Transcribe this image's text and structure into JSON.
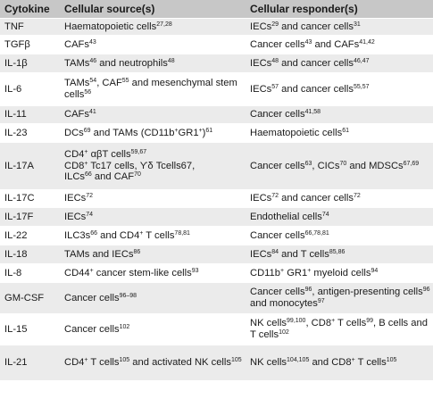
{
  "header": {
    "col1": "Cytokine",
    "col2": "Cellular source(s)",
    "col3": "Cellular responder(s)"
  },
  "rows": [
    {
      "cytokine": "TNF",
      "source": [
        {
          "t": "Haematopoietic cells"
        },
        {
          "s": "27,28"
        }
      ],
      "responder": [
        {
          "t": "IECs"
        },
        {
          "s": "29"
        },
        {
          "t": " and cancer cells"
        },
        {
          "s": "31"
        }
      ]
    },
    {
      "cytokine": "TGFβ",
      "source": [
        {
          "t": "CAFs"
        },
        {
          "s": "43"
        }
      ],
      "responder": [
        {
          "t": "Cancer cells"
        },
        {
          "s": "43"
        },
        {
          "t": " and CAFs"
        },
        {
          "s": "41,42"
        }
      ]
    },
    {
      "cytokine": "IL-1β",
      "source": [
        {
          "t": "TAMs"
        },
        {
          "s": "46"
        },
        {
          "t": " and neutrophils"
        },
        {
          "s": "48"
        }
      ],
      "responder": [
        {
          "t": "IECs"
        },
        {
          "s": "48"
        },
        {
          "t": " and cancer cells"
        },
        {
          "s": "46,47"
        }
      ]
    },
    {
      "cytokine": "IL-6",
      "source": [
        {
          "t": "TAMs"
        },
        {
          "s": "54"
        },
        {
          "t": ", CAF"
        },
        {
          "s": "55"
        },
        {
          "t": " and mesenchymal stem cells"
        },
        {
          "s": "56"
        }
      ],
      "responder": [
        {
          "t": "IECs"
        },
        {
          "s": "57"
        },
        {
          "t": " and cancer cells"
        },
        {
          "s": "55,57"
        }
      ]
    },
    {
      "cytokine": "IL-11",
      "source": [
        {
          "t": "CAFs"
        },
        {
          "s": "41"
        }
      ],
      "responder": [
        {
          "t": "Cancer cells"
        },
        {
          "s": "41,58"
        }
      ]
    },
    {
      "cytokine": "IL-23",
      "source": [
        {
          "t": "DCs"
        },
        {
          "s": "69"
        },
        {
          "t": " and TAMs (CD11b"
        },
        {
          "s": "+"
        },
        {
          "t": "GR1"
        },
        {
          "s": "+"
        },
        {
          "t": ")"
        },
        {
          "s": "61"
        }
      ],
      "responder": [
        {
          "t": "Haematopoietic cells"
        },
        {
          "s": "61"
        }
      ]
    },
    {
      "cytokine": "IL-17A",
      "source": [
        {
          "t": "CD4"
        },
        {
          "s": "+"
        },
        {
          "t": " αβT cells"
        },
        {
          "s": "59,67"
        },
        {
          "br": 1
        },
        {
          "t": "CD8"
        },
        {
          "s": "+"
        },
        {
          "t": " Tc17 cells, ϒδ Tcells67,"
        },
        {
          "br": 1
        },
        {
          "t": "ILCs"
        },
        {
          "s": "66"
        },
        {
          "t": " and CAF"
        },
        {
          "s": "70"
        }
      ],
      "responder": [
        {
          "t": "Cancer cells"
        },
        {
          "s": "63"
        },
        {
          "t": ", CICs"
        },
        {
          "s": "70"
        },
        {
          "t": " and MDSCs"
        },
        {
          "s": "67,69"
        }
      ]
    },
    {
      "cytokine": "IL-17C",
      "source": [
        {
          "t": "IECs"
        },
        {
          "s": "72"
        }
      ],
      "responder": [
        {
          "t": "IECs"
        },
        {
          "s": "72"
        },
        {
          "t": " and cancer cells"
        },
        {
          "s": "72"
        }
      ]
    },
    {
      "cytokine": "IL-17F",
      "source": [
        {
          "t": "IECs"
        },
        {
          "s": "74"
        }
      ],
      "responder": [
        {
          "t": "Endothelial cells"
        },
        {
          "s": "74"
        }
      ]
    },
    {
      "cytokine": "IL-22",
      "source": [
        {
          "t": "ILC3s"
        },
        {
          "s": "66"
        },
        {
          "t": " and CD4"
        },
        {
          "s": "+"
        },
        {
          "t": " T cells"
        },
        {
          "s": "78,81"
        }
      ],
      "responder": [
        {
          "t": "Cancer cells"
        },
        {
          "s": "66,78,81"
        }
      ]
    },
    {
      "cytokine": "IL-18",
      "source": [
        {
          "t": "TAMs and IECs"
        },
        {
          "s": "86"
        }
      ],
      "responder": [
        {
          "t": "IECs"
        },
        {
          "s": "84"
        },
        {
          "t": " and T cells"
        },
        {
          "s": "85,86"
        }
      ]
    },
    {
      "cytokine": "IL-8",
      "source": [
        {
          "t": "CD44"
        },
        {
          "s": "+"
        },
        {
          "t": " cancer stem-like cells"
        },
        {
          "s": "93"
        }
      ],
      "responder": [
        {
          "t": "CD11b"
        },
        {
          "s": "+"
        },
        {
          "t": " GR1"
        },
        {
          "s": "+"
        },
        {
          "t": " myeloid cells"
        },
        {
          "s": "94"
        }
      ]
    },
    {
      "cytokine": "GM-CSF",
      "source": [
        {
          "t": "Cancer cells"
        },
        {
          "s": "96–98"
        }
      ],
      "responder": [
        {
          "t": "Cancer cells"
        },
        {
          "s": "96"
        },
        {
          "t": ", antigen-presenting cells"
        },
        {
          "s": "96"
        },
        {
          "t": " and monocytes"
        },
        {
          "s": "97"
        }
      ]
    },
    {
      "cytokine": "IL-15",
      "source": [
        {
          "t": "Cancer cells"
        },
        {
          "s": "102"
        }
      ],
      "responder": [
        {
          "t": "NK cells"
        },
        {
          "s": "99,100"
        },
        {
          "t": ", CD8"
        },
        {
          "s": "+"
        },
        {
          "t": " T cells"
        },
        {
          "s": "99"
        },
        {
          "t": ", B cells and T cells"
        },
        {
          "s": "102"
        }
      ]
    },
    {
      "cytokine": "IL-21",
      "source": [
        {
          "t": "CD4"
        },
        {
          "s": "+"
        },
        {
          "t": " T cells"
        },
        {
          "s": "105"
        },
        {
          "t": " and activated NK cells"
        },
        {
          "s": "105"
        }
      ],
      "responder": [
        {
          "t": "NK cells"
        },
        {
          "s": "104,105"
        },
        {
          "t": " and CD8"
        },
        {
          "s": "+"
        },
        {
          "t": " T cells"
        },
        {
          "s": "105"
        }
      ]
    }
  ]
}
